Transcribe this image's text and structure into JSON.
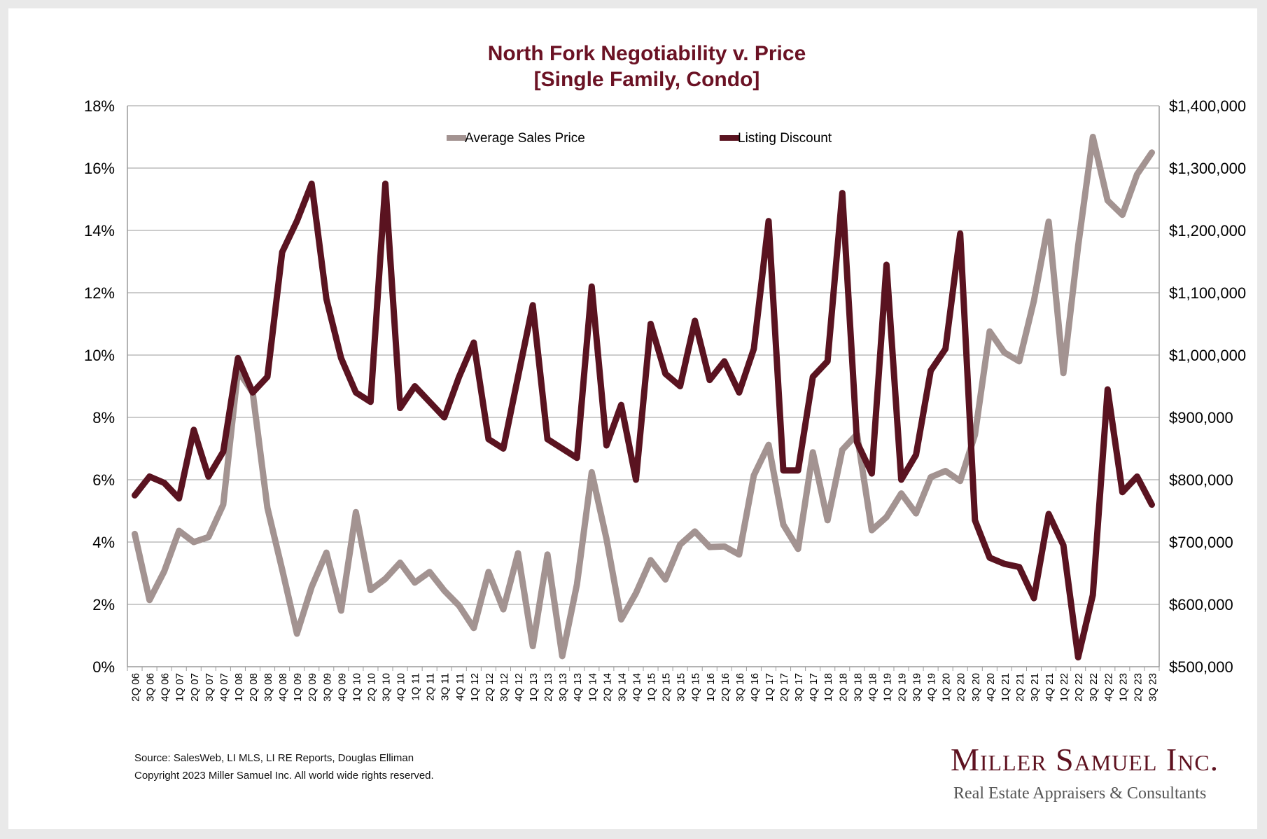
{
  "chart_data": {
    "type": "line",
    "title_line1": "North Fork Negotiability v. Price",
    "title_line2": "[Single Family, Condo]",
    "legend_position": "top",
    "grid": true,
    "categories": [
      "2Q 06",
      "3Q 06",
      "4Q 06",
      "1Q 07",
      "2Q 07",
      "3Q 07",
      "4Q 07",
      "1Q 08",
      "2Q 08",
      "3Q 08",
      "4Q 08",
      "1Q 09",
      "2Q 09",
      "3Q 09",
      "4Q 09",
      "1Q 10",
      "2Q 10",
      "3Q 10",
      "4Q 10",
      "1Q 11",
      "2Q 11",
      "3Q 11",
      "4Q 11",
      "1Q 12",
      "2Q 12",
      "3Q 12",
      "4Q 12",
      "1Q 13",
      "2Q 13",
      "3Q 13",
      "4Q 13",
      "1Q 14",
      "2Q 14",
      "3Q 14",
      "4Q 14",
      "1Q 15",
      "2Q 15",
      "3Q 15",
      "4Q 15",
      "1Q 16",
      "2Q 16",
      "3Q 16",
      "4Q 16",
      "1Q 17",
      "2Q 17",
      "3Q 17",
      "4Q 17",
      "1Q 18",
      "2Q 18",
      "3Q 18",
      "4Q 18",
      "1Q 19",
      "2Q 19",
      "3Q 19",
      "4Q 19",
      "1Q 20",
      "2Q 20",
      "3Q 20",
      "4Q 20",
      "1Q 21",
      "2Q 21",
      "3Q 21",
      "4Q 21",
      "1Q 22",
      "2Q 22",
      "3Q 22",
      "4Q 22",
      "1Q 23",
      "2Q 23",
      "3Q 23"
    ],
    "left_axis": {
      "min": 0,
      "max": 18,
      "ticks": [
        "0%",
        "2%",
        "4%",
        "6%",
        "8%",
        "10%",
        "12%",
        "14%",
        "16%",
        "18%"
      ]
    },
    "right_axis": {
      "min": 500000,
      "max": 1400000,
      "ticks": [
        "$500,000",
        "$600,000",
        "$700,000",
        "$800,000",
        "$900,000",
        "$1,000,000",
        "$1,100,000",
        "$1,200,000",
        "$1,300,000",
        "$1,400,000"
      ]
    },
    "series": [
      {
        "name": "Average Sales Price",
        "axis": "right",
        "color": "#a39391",
        "values": [
          713000,
          607000,
          653000,
          718000,
          700000,
          708000,
          760000,
          975000,
          940000,
          755000,
          656000,
          553000,
          628000,
          683000,
          590000,
          748000,
          623000,
          641000,
          667000,
          635000,
          652000,
          622000,
          598000,
          562000,
          652000,
          592000,
          682000,
          533000,
          680000,
          517000,
          632000,
          812000,
          705000,
          576000,
          618000,
          671000,
          640000,
          696000,
          717000,
          692000,
          693000,
          680000,
          807000,
          856000,
          728000,
          689000,
          844000,
          735000,
          848000,
          873000,
          719000,
          740000,
          778000,
          746000,
          804000,
          814000,
          798000,
          872000,
          1038000,
          1004000,
          990000,
          1087000,
          1214000,
          971000,
          1175000,
          1350000,
          1248000,
          1225000,
          1290000,
          1325000
        ]
      },
      {
        "name": "Listing Discount",
        "axis": "left",
        "color": "#5a1320",
        "values": [
          5.5,
          6.1,
          5.9,
          5.4,
          7.6,
          6.1,
          6.9,
          9.9,
          8.8,
          9.3,
          13.3,
          14.3,
          15.5,
          11.8,
          9.9,
          8.8,
          8.5,
          15.5,
          8.3,
          9.0,
          8.5,
          8.0,
          9.3,
          10.4,
          7.3,
          7.0,
          9.3,
          11.6,
          7.3,
          7.0,
          6.7,
          12.2,
          7.1,
          8.4,
          6.0,
          11.0,
          9.4,
          9.0,
          11.1,
          9.2,
          9.8,
          8.8,
          10.2,
          14.3,
          6.3,
          6.3,
          9.3,
          9.8,
          15.2,
          7.2,
          6.2,
          12.9,
          6.0,
          6.8,
          9.5,
          10.2,
          13.9,
          4.7,
          3.5,
          3.3,
          3.2,
          2.2,
          4.9,
          3.9,
          0.3,
          2.3,
          8.9,
          5.6,
          6.1,
          5.2
        ]
      }
    ]
  },
  "footer": {
    "source": "Source: SalesWeb, LI MLS, LI RE Reports, Douglas Elliman",
    "copyright": "Copyright 2023 Miller Samuel Inc.  All world wide rights reserved."
  },
  "brand": {
    "name": "Miller Samuel Inc.",
    "tagline": "Real Estate Appraisers & Consultants"
  }
}
